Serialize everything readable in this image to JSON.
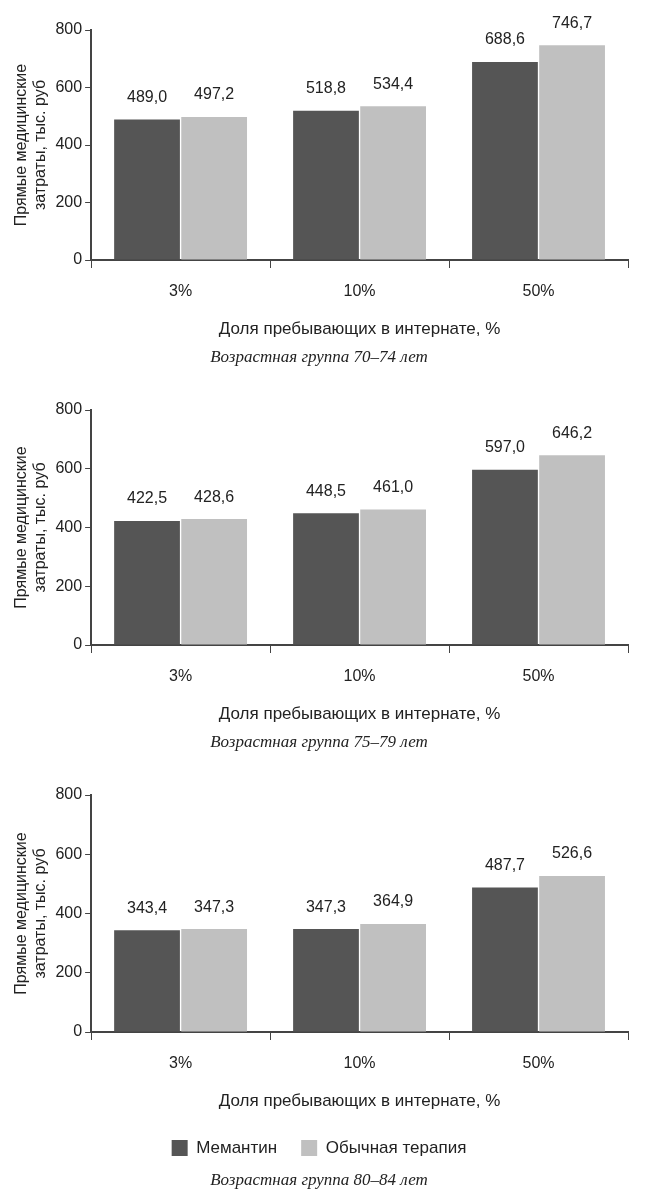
{
  "chart_data": [
    {
      "type": "bar",
      "title": "Возрастная группа 70–74 лет",
      "xlabel": "Доля пребывающих в интернате, %",
      "ylabel": "Прямые медицинские затраты, тыс. руб",
      "categories": [
        "3%",
        "10%",
        "50%"
      ],
      "ylim": [
        0,
        800
      ],
      "yticks": [
        0,
        200,
        400,
        600,
        800
      ],
      "grid": false,
      "legend": false,
      "series": [
        {
          "color": "#555555",
          "values": [
            489.0,
            518.8,
            688.6
          ],
          "value_labels": [
            "489,0",
            "518,8",
            "688,6"
          ]
        },
        {
          "color": "#c0c0c0",
          "values": [
            497.2,
            534.4,
            746.7
          ],
          "value_labels": [
            "497,2",
            "534,4",
            "746,7"
          ]
        }
      ]
    },
    {
      "type": "bar",
      "title": "Возрастная группа 75–79 лет",
      "xlabel": "Доля пребывающих в интернате, %",
      "ylabel": "Прямые медицинские затраты, тыс. руб",
      "categories": [
        "3%",
        "10%",
        "50%"
      ],
      "ylim": [
        0,
        800
      ],
      "yticks": [
        0,
        200,
        400,
        600,
        800
      ],
      "grid": false,
      "legend": false,
      "series": [
        {
          "color": "#555555",
          "values": [
            422.5,
            448.5,
            597.0
          ],
          "value_labels": [
            "422,5",
            "448,5",
            "597,0"
          ]
        },
        {
          "color": "#c0c0c0",
          "values": [
            428.6,
            461.0,
            646.2
          ],
          "value_labels": [
            "428,6",
            "461,0",
            "646,2"
          ]
        }
      ]
    },
    {
      "type": "bar",
      "title": "Возрастная группа 80–84 лет",
      "xlabel": "Доля пребывающих в интернате, %",
      "ylabel": "Прямые медицинские затраты, тыс. руб",
      "categories": [
        "3%",
        "10%",
        "50%"
      ],
      "ylim": [
        0,
        800
      ],
      "yticks": [
        0,
        200,
        400,
        600,
        800
      ],
      "grid": false,
      "legend": "bottom",
      "series": [
        {
          "name": "Мемантин",
          "color": "#555555",
          "values": [
            343.4,
            347.3,
            487.7
          ],
          "value_labels": [
            "343,4",
            "347,3",
            "487,7"
          ]
        },
        {
          "name": "Обычная терапия",
          "color": "#c0c0c0",
          "values": [
            347.3,
            364.9,
            526.6
          ],
          "value_labels": [
            "347,3",
            "364,9",
            "526,6"
          ]
        }
      ]
    }
  ]
}
